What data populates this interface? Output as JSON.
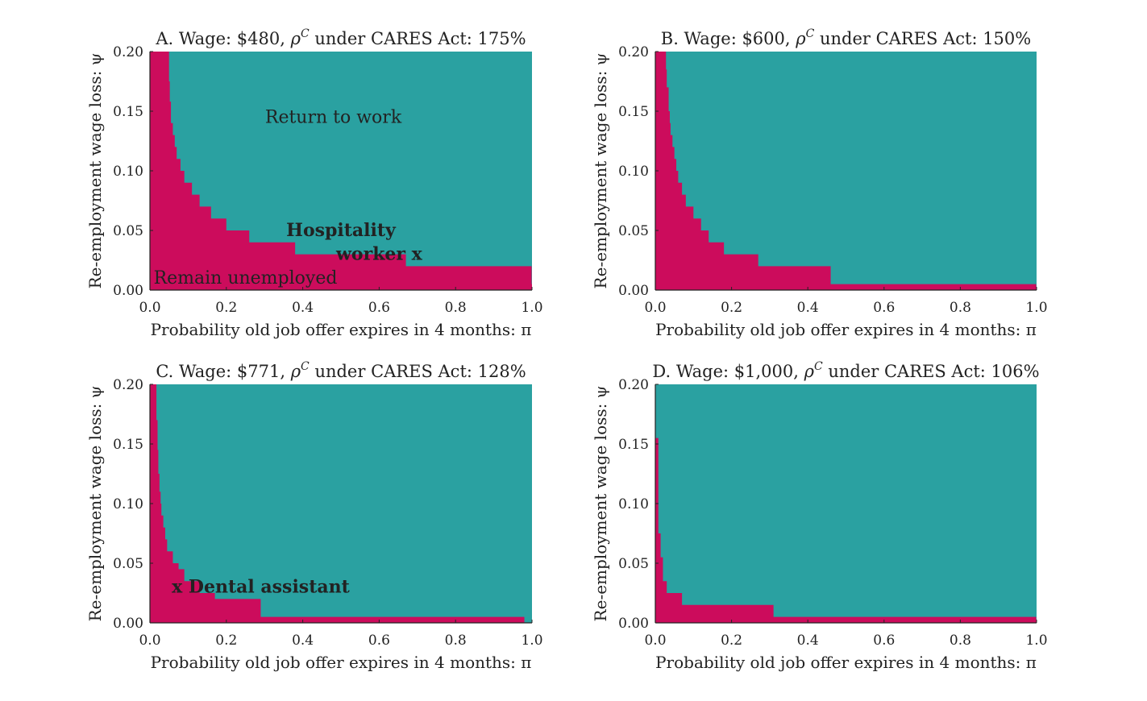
{
  "colors": {
    "remain": "#cc0c5c",
    "return": "#2aa1a1",
    "axis": "#222222"
  },
  "chart_data": [
    {
      "type": "heatmap",
      "title_pre": "A. Wage: $480, ",
      "title_post": " under CARES Act: 175%",
      "rho_symbol": "ρ",
      "rho_sup": "C",
      "xlabel": "Probability old job offer expires in 4 months: π",
      "ylabel": "Re-employment wage loss: ψ",
      "xlim": [
        0,
        1
      ],
      "ylim": [
        0,
        0.2
      ],
      "xticks": [
        "0.0",
        "0.2",
        "0.4",
        "0.6",
        "0.8",
        "1.0"
      ],
      "yticks": [
        "0.00",
        "0.05",
        "0.10",
        "0.15",
        "0.20"
      ],
      "boundary": [
        [
          0.04,
          0.2
        ],
        [
          0.04,
          0.2
        ],
        [
          0.05,
          0.175
        ],
        [
          0.052,
          0.158
        ],
        [
          0.055,
          0.14
        ],
        [
          0.06,
          0.13
        ],
        [
          0.065,
          0.12
        ],
        [
          0.07,
          0.11
        ],
        [
          0.08,
          0.1
        ],
        [
          0.09,
          0.09
        ],
        [
          0.11,
          0.08
        ],
        [
          0.13,
          0.07
        ],
        [
          0.16,
          0.06
        ],
        [
          0.2,
          0.05
        ],
        [
          0.26,
          0.04
        ],
        [
          0.38,
          0.03
        ],
        [
          0.67,
          0.02
        ],
        [
          0.999,
          0.005
        ]
      ],
      "annotations": [
        {
          "text": "Return to work",
          "x": 0.48,
          "y": 0.145,
          "style": "normal"
        },
        {
          "text": "Remain unemployed",
          "x": 0.25,
          "y": 0.01,
          "style": "normal"
        },
        {
          "text": "Hospitality",
          "x": 0.5,
          "y": 0.05,
          "style": "bold"
        },
        {
          "text": "worker x",
          "x": 0.6,
          "y": 0.03,
          "style": "bold"
        }
      ]
    },
    {
      "type": "heatmap",
      "title_pre": "B. Wage: $600, ",
      "title_post": " under CARES Act: 150%",
      "rho_symbol": "ρ",
      "rho_sup": "C",
      "xlabel": "Probability old job offer expires in 4 months: π",
      "ylabel": "Re-employment wage loss: ψ",
      "xlim": [
        0,
        1
      ],
      "ylim": [
        0,
        0.2
      ],
      "xticks": [
        "0.0",
        "0.2",
        "0.4",
        "0.6",
        "0.8",
        "1.0"
      ],
      "yticks": [
        "0.00",
        "0.05",
        "0.10",
        "0.15",
        "0.20"
      ],
      "boundary": [
        [
          0.025,
          0.2
        ],
        [
          0.028,
          0.185
        ],
        [
          0.03,
          0.17
        ],
        [
          0.035,
          0.15
        ],
        [
          0.038,
          0.14
        ],
        [
          0.04,
          0.13
        ],
        [
          0.045,
          0.12
        ],
        [
          0.05,
          0.11
        ],
        [
          0.055,
          0.1
        ],
        [
          0.06,
          0.09
        ],
        [
          0.07,
          0.08
        ],
        [
          0.08,
          0.07
        ],
        [
          0.1,
          0.06
        ],
        [
          0.12,
          0.05
        ],
        [
          0.14,
          0.04
        ],
        [
          0.18,
          0.03
        ],
        [
          0.27,
          0.02
        ],
        [
          0.46,
          0.005
        ],
        [
          0.999,
          0.0
        ]
      ],
      "annotations": []
    },
    {
      "type": "heatmap",
      "title_pre": "C. Wage: $771, ",
      "title_post": " under CARES Act: 128%",
      "rho_symbol": "ρ",
      "rho_sup": "C",
      "xlabel": "Probability old job offer expires in 4 months: π",
      "ylabel": "Re-employment wage loss: ψ",
      "xlim": [
        0,
        1
      ],
      "ylim": [
        0,
        0.2
      ],
      "xticks": [
        "0.0",
        "0.2",
        "0.4",
        "0.6",
        "0.8",
        "1.0"
      ],
      "yticks": [
        "0.00",
        "0.05",
        "0.10",
        "0.15",
        "0.20"
      ],
      "boundary": [
        [
          0.015,
          0.2
        ],
        [
          0.017,
          0.17
        ],
        [
          0.02,
          0.145
        ],
        [
          0.022,
          0.125
        ],
        [
          0.025,
          0.11
        ],
        [
          0.028,
          0.1
        ],
        [
          0.03,
          0.09
        ],
        [
          0.035,
          0.08
        ],
        [
          0.04,
          0.07
        ],
        [
          0.045,
          0.06
        ],
        [
          0.06,
          0.05
        ],
        [
          0.075,
          0.045
        ],
        [
          0.09,
          0.035
        ],
        [
          0.13,
          0.025
        ],
        [
          0.17,
          0.02
        ],
        [
          0.29,
          0.005
        ],
        [
          0.98,
          0.0
        ]
      ],
      "annotations": [
        {
          "text": "x Dental assistant",
          "x": 0.29,
          "y": 0.03,
          "style": "bold"
        }
      ]
    },
    {
      "type": "heatmap",
      "title_pre": "D. Wage: $1,000, ",
      "title_post": " under CARES Act: 106%",
      "rho_symbol": "ρ",
      "rho_sup": "C",
      "xlabel": "Probability old job offer expires in 4 months: π",
      "ylabel": "Re-employment wage loss: ψ",
      "xlim": [
        0,
        1
      ],
      "ylim": [
        0,
        0.2
      ],
      "xticks": [
        "0.0",
        "0.2",
        "0.4",
        "0.6",
        "0.8",
        "1.0"
      ],
      "yticks": [
        "0.00",
        "0.05",
        "0.10",
        "0.15",
        "0.20"
      ],
      "boundary": [
        [
          0.005,
          0.155
        ],
        [
          0.008,
          0.075
        ],
        [
          0.014,
          0.055
        ],
        [
          0.02,
          0.035
        ],
        [
          0.03,
          0.025
        ],
        [
          0.07,
          0.015
        ],
        [
          0.31,
          0.005
        ],
        [
          0.999,
          0.0
        ]
      ],
      "annotations": []
    }
  ]
}
